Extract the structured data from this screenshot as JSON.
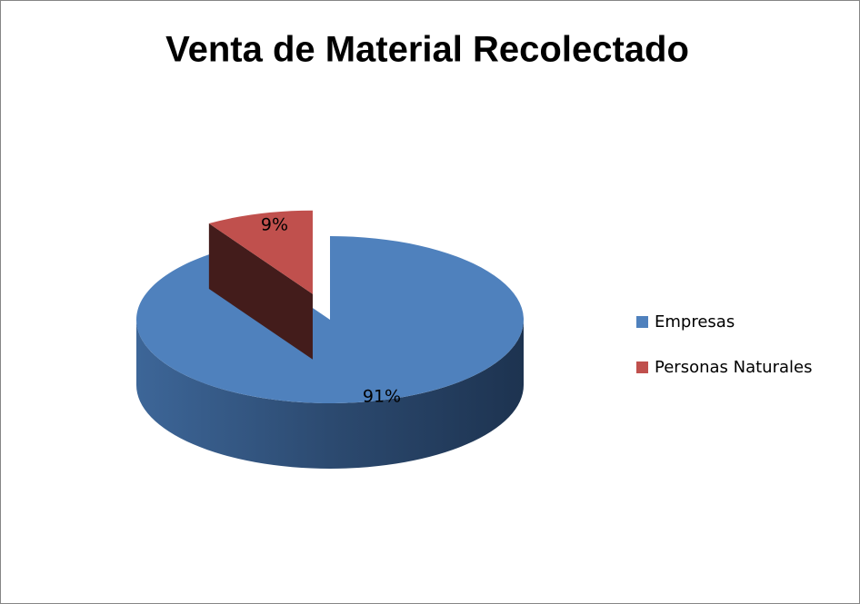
{
  "chart_data": {
    "type": "pie",
    "title": "Venta de Material Recolectado",
    "categories": [
      "Empresas",
      "Personas Naturales"
    ],
    "values": [
      91,
      9
    ],
    "value_labels": [
      "91%",
      "9%"
    ],
    "colors": [
      "#4f81bd",
      "#c0504d"
    ],
    "exploded": [
      false,
      true
    ],
    "legend": "right"
  }
}
